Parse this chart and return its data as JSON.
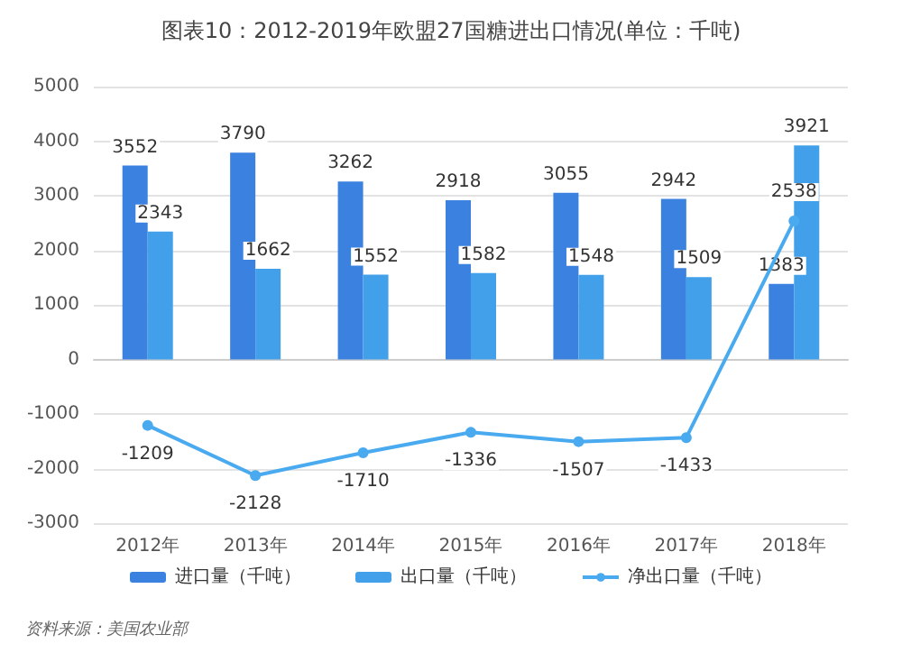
{
  "chart_data": {
    "type": "bar",
    "title": "图表10：2012-2019年欧盟27国糖进出口情况(单位：千吨)",
    "categories": [
      "2012年",
      "2013年",
      "2014年",
      "2015年",
      "2016年",
      "2017年",
      "2018年"
    ],
    "series": [
      {
        "name": "进口量（千吨）",
        "color": "#3b82e0",
        "values": [
          3552,
          3790,
          3262,
          2918,
          3055,
          2942,
          1383
        ]
      },
      {
        "name": "出口量（千吨）",
        "color": "#42a0ea",
        "values": [
          2343,
          1662,
          1552,
          1582,
          1548,
          1509,
          3921
        ]
      },
      {
        "name": "净出口量（千吨）",
        "type": "line",
        "color": "#4aaaf0",
        "marker": "circle",
        "values": [
          -1209,
          -2128,
          -1710,
          -1336,
          -1507,
          -1433,
          2538
        ]
      }
    ],
    "ylim": [
      -3000,
      5000
    ],
    "yticks": [
      -3000,
      -2000,
      -1000,
      0,
      1000,
      2000,
      3000,
      4000,
      5000
    ],
    "grid": "y",
    "legend": "bottom",
    "data_labels": true,
    "annotations": [
      "资料来源：美国农业部"
    ]
  }
}
